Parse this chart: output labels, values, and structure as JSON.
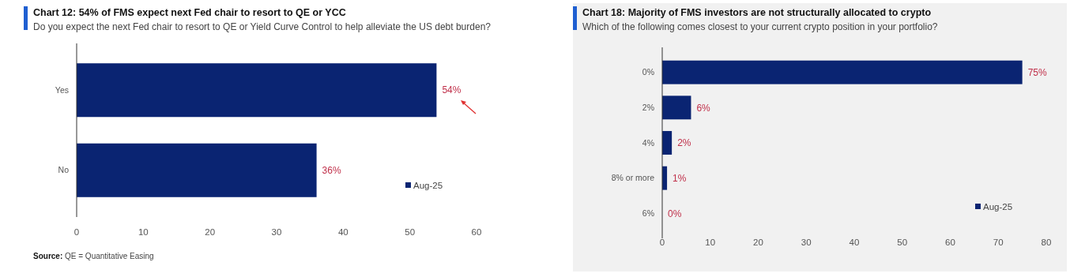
{
  "chart_data": [
    {
      "type": "bar",
      "orientation": "horizontal",
      "title": "Chart 12: 54% of FMS expect next Fed chair to resort to QE or YCC",
      "subtitle": "Do you expect the next Fed chair to resort to QE or Yield Curve Control to help alleviate the US debt burden?",
      "categories": [
        "Yes",
        "No"
      ],
      "series": [
        {
          "name": "Aug-25",
          "color": "#0a2472",
          "values": [
            54,
            36
          ],
          "value_labels": [
            "54%",
            "36%"
          ]
        }
      ],
      "xlim": [
        0,
        60
      ],
      "xticks": [
        0,
        10,
        20,
        30,
        40,
        50,
        60
      ],
      "legend": "bottom right",
      "grid": false,
      "annotations": [
        "Source: QE = Quantitative Easing"
      ]
    },
    {
      "type": "bar",
      "orientation": "horizontal",
      "title": "Chart 18: Majority of FMS investors are not structurally allocated to crypto",
      "subtitle": "Which of the following comes closest to your current crypto position in your portfolio?",
      "categories": [
        "0%",
        "2%",
        "4%",
        "8% or more",
        "6%"
      ],
      "series": [
        {
          "name": "Aug-25",
          "color": "#0a2472",
          "values": [
            75,
            6,
            2,
            1,
            0
          ],
          "value_labels": [
            "75%",
            "6%",
            "2%",
            "1%",
            "0%"
          ]
        }
      ],
      "xlim": [
        0,
        80
      ],
      "xticks": [
        0,
        10,
        20,
        30,
        40,
        50,
        60,
        70,
        80
      ],
      "legend": "bottom right",
      "grid": false
    }
  ]
}
